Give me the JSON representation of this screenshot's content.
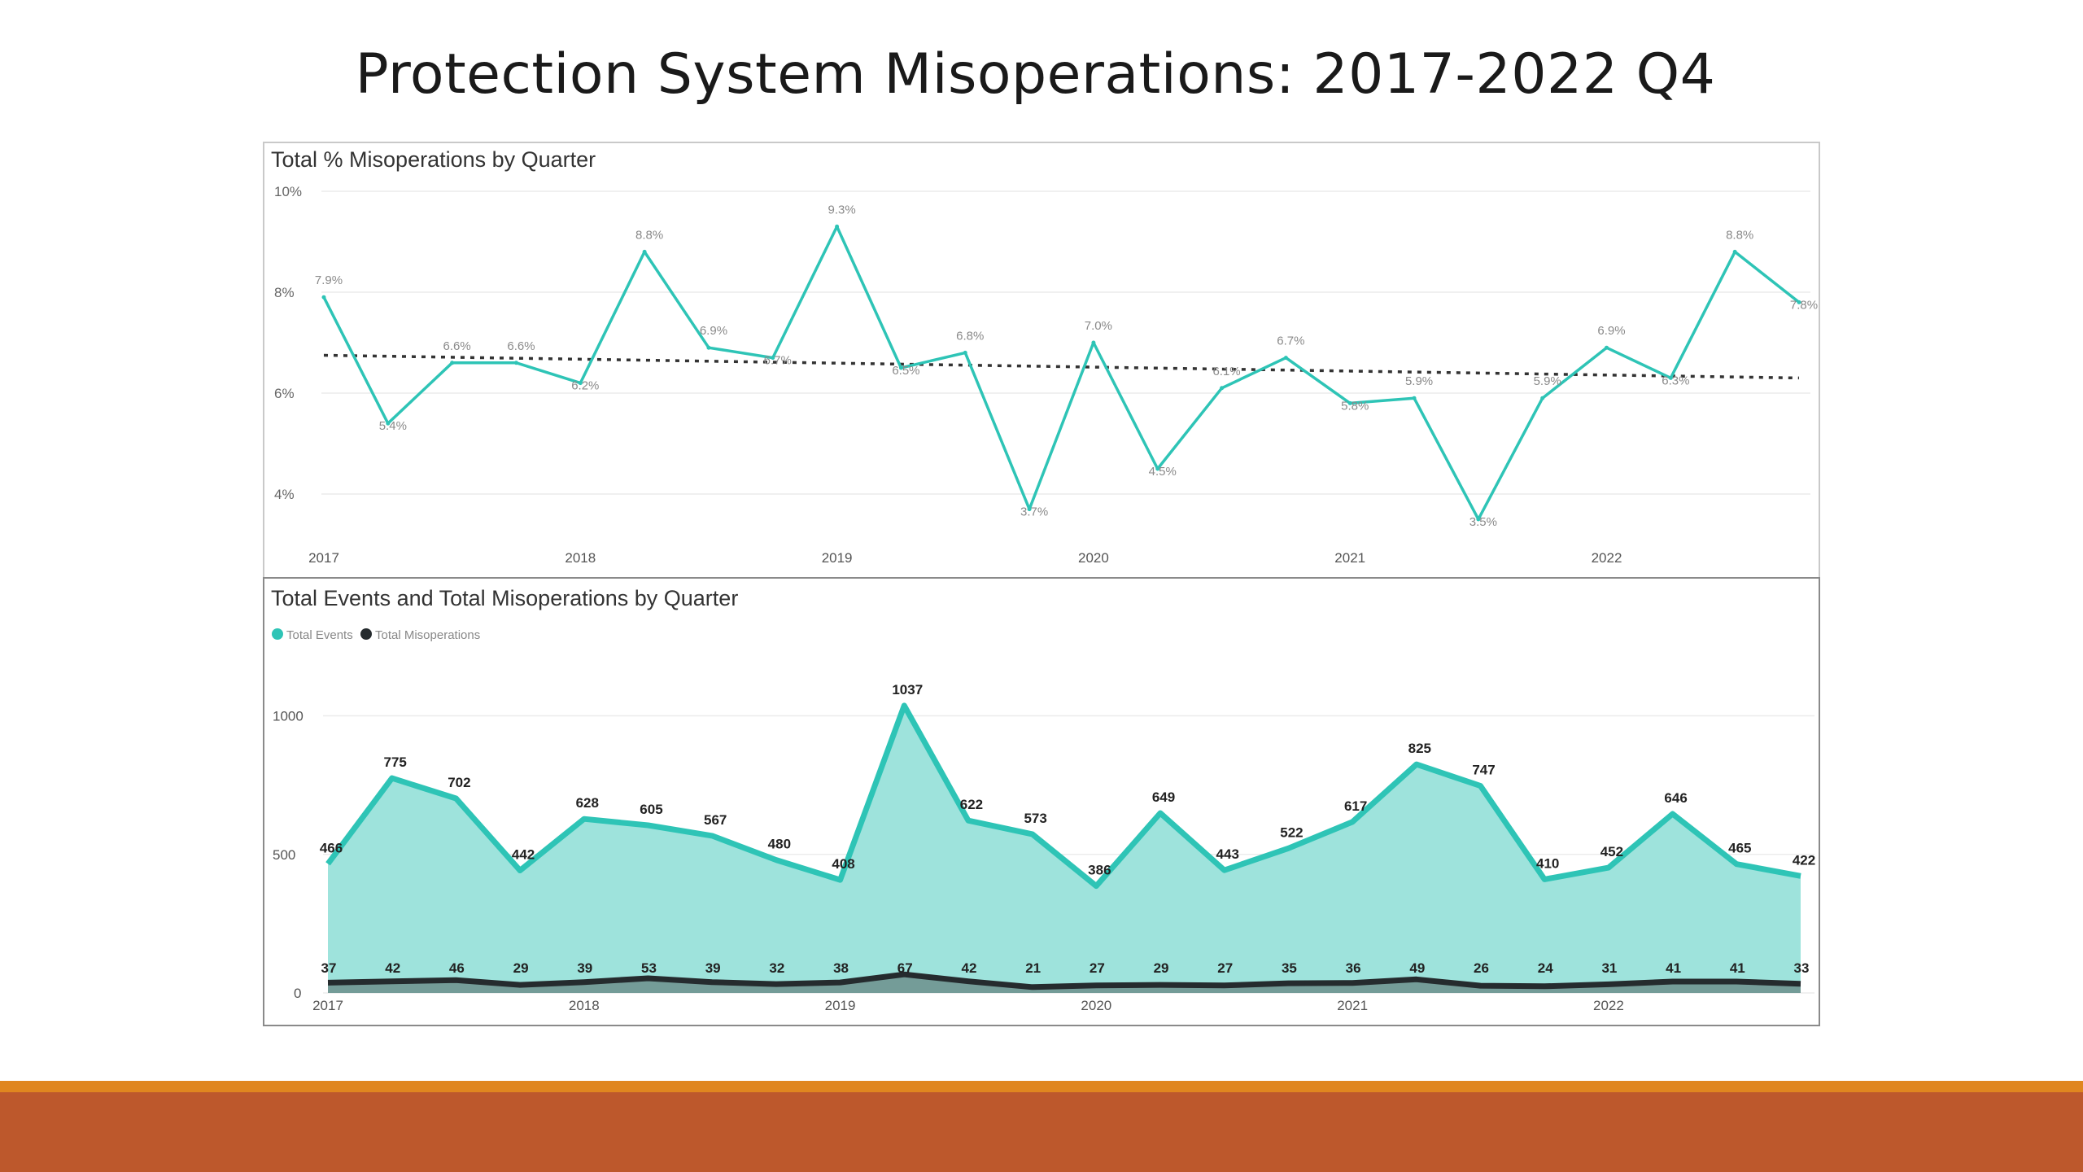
{
  "slide": {
    "title": "Protection System Misoperations:  2017-2022 Q4"
  },
  "colors": {
    "teal": "#2ec4b6",
    "teal_fill": "#9ee3dc",
    "dark": "#252b2e",
    "trend": "#333333",
    "orange_bar": "#e0861f",
    "rust_bar": "#bd582c"
  },
  "chart_data": [
    {
      "type": "line",
      "title": "Total % Misoperations by Quarter",
      "x_ticks": [
        "2017",
        "2018",
        "2019",
        "2020",
        "2021",
        "2022"
      ],
      "y_ticks": [
        "10%",
        "8%",
        "6%",
        "4%"
      ],
      "ylim": [
        3,
        10
      ],
      "grid": true,
      "trendline": {
        "style": "dotted",
        "start": 6.75,
        "end": 6.3
      },
      "series": [
        {
          "values": [
            7.9,
            5.4,
            6.6,
            6.6,
            6.2,
            8.8,
            6.9,
            6.7,
            9.3,
            6.5,
            6.8,
            3.7,
            7.0,
            4.5,
            6.1,
            6.7,
            5.8,
            5.9,
            3.5,
            5.9,
            6.9,
            6.3,
            8.8,
            7.8
          ],
          "labels": [
            "7.9%",
            "5.4%",
            "6.6%",
            "6.6%",
            "6.2%",
            "8.8%",
            "6.9%",
            "6.7%",
            "9.3%",
            "6.5%",
            "6.8%",
            "3.7%",
            "7.0%",
            "4.5%",
            "6.1%",
            "6.7%",
            "5.8%",
            "5.9%",
            "3.5%",
            "5.9%",
            "6.9%",
            "6.3%",
            "8.8%",
            "7.8%"
          ]
        }
      ]
    },
    {
      "type": "area",
      "title": "Total Events and Total Misoperations by Quarter",
      "x_ticks": [
        "2017",
        "2018",
        "2019",
        "2020",
        "2021",
        "2022"
      ],
      "y_ticks": [
        "1000",
        "500",
        "0"
      ],
      "ylim": [
        0,
        1100
      ],
      "legend_position": "top-left",
      "series": [
        {
          "name": "Total Events",
          "values": [
            466,
            775,
            702,
            442,
            628,
            605,
            567,
            480,
            408,
            1037,
            622,
            573,
            386,
            649,
            443,
            522,
            617,
            825,
            747,
            410,
            452,
            646,
            465,
            422
          ]
        },
        {
          "name": "Total Misoperations",
          "values": [
            37,
            42,
            46,
            29,
            39,
            53,
            39,
            32,
            38,
            67,
            42,
            21,
            27,
            29,
            27,
            35,
            36,
            49,
            26,
            24,
            31,
            41,
            41,
            33
          ]
        }
      ]
    }
  ]
}
